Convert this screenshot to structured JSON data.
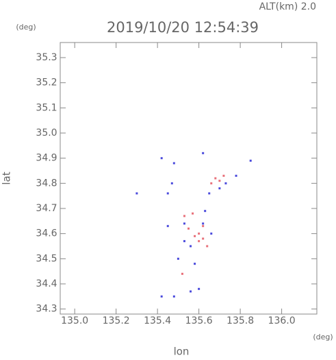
{
  "chart_data": {
    "type": "scatter",
    "title": "2019/10/20 12:54:39",
    "subtitle": "ALT(km) 2.0",
    "x_label": "lon",
    "y_label": "lat",
    "x_unit": "(deg)",
    "y_unit": "(deg)",
    "xlim": [
      134.93,
      136.17
    ],
    "ylim": [
      34.28,
      35.36
    ],
    "xticks": [
      {
        "value": 135.0,
        "label": "135.0"
      },
      135.2,
      135.4,
      135.6,
      135.8,
      {
        "value": 136.0,
        "label": "136.0"
      }
    ],
    "yticks": [
      34.3,
      34.4,
      34.5,
      34.6,
      34.7,
      34.8,
      34.9,
      {
        "value": 35.0,
        "label": "35.0"
      },
      35.1,
      35.2,
      35.3
    ],
    "series": [
      {
        "color": "#e8707a",
        "x": [
          135.52,
          135.6,
          135.62,
          135.55,
          135.7,
          135.66,
          135.6,
          135.57,
          135.64,
          135.53,
          135.68,
          135.62,
          135.58,
          135.72
        ],
        "y": [
          34.44,
          34.6,
          34.58,
          34.62,
          34.81,
          34.8,
          34.57,
          34.68,
          34.55,
          34.67,
          34.82,
          34.63,
          34.59,
          34.83
        ]
      },
      {
        "color": "#4a4adc",
        "x": [
          135.42,
          135.85,
          135.78,
          135.47,
          135.45,
          135.3,
          135.5,
          135.58,
          135.42,
          135.48,
          135.56,
          135.6,
          135.62,
          135.53,
          135.56,
          135.65,
          135.73,
          135.62,
          135.48,
          135.45,
          135.7,
          135.66,
          135.53,
          135.63
        ],
        "y": [
          34.9,
          34.89,
          34.83,
          34.8,
          34.76,
          34.76,
          34.5,
          34.48,
          34.35,
          34.35,
          34.37,
          34.38,
          34.64,
          34.64,
          34.55,
          34.76,
          34.8,
          34.92,
          34.88,
          34.63,
          34.78,
          34.6,
          34.57,
          34.69
        ]
      }
    ]
  }
}
